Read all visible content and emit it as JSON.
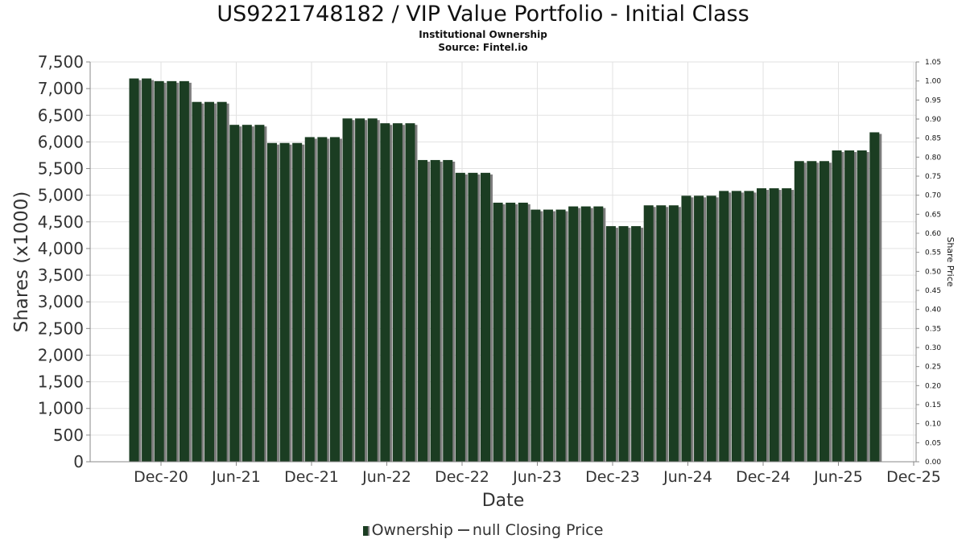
{
  "chart_data": {
    "type": "bar",
    "title": "US9221748182 / VIP Value Portfolio - Initial Class",
    "subtitle": "Institutional Ownership",
    "source": "Source: Fintel.io",
    "xlabel": "Date",
    "ylabel": "Shares (x1000)",
    "y2label": "Share Price",
    "ylim": [
      0,
      7500
    ],
    "y_ticks": [
      0,
      500,
      1000,
      1500,
      2000,
      2500,
      3000,
      3500,
      4000,
      4500,
      5000,
      5500,
      6000,
      6500,
      7000,
      7500
    ],
    "y_tick_labels": [
      "0",
      "500",
      "1,000",
      "1,500",
      "2,000",
      "2,500",
      "3,000",
      "3,500",
      "4,000",
      "4,500",
      "5,000",
      "5,500",
      "6,000",
      "6,500",
      "7,000",
      "7,500"
    ],
    "y2lim": [
      0,
      1.05
    ],
    "y2_tick_labels": [
      "0.00",
      "0.05",
      "0.10",
      "0.15",
      "0.20",
      "0.25",
      "0.30",
      "0.35",
      "0.40",
      "0.45",
      "0.50",
      "0.55",
      "0.60",
      "0.65",
      "0.70",
      "0.75",
      "0.80",
      "0.85",
      "0.90",
      "0.95",
      "1.00",
      "1.05"
    ],
    "x_tick_labels": [
      "Dec-20",
      "Jun-21",
      "Dec-21",
      "Jun-22",
      "Dec-22",
      "Jun-23",
      "Dec-23",
      "Jun-24",
      "Dec-24",
      "Jun-25",
      "Dec-25"
    ],
    "grid": true,
    "legend_position": "bottom",
    "series": [
      {
        "name": "Ownership",
        "color": "#1b3d22",
        "values": [
          7190,
          7190,
          7140,
          7140,
          7140,
          6750,
          6750,
          6750,
          6320,
          6320,
          6320,
          5980,
          5980,
          5980,
          6090,
          6090,
          6090,
          6440,
          6440,
          6440,
          6350,
          6350,
          6350,
          5660,
          5660,
          5660,
          5420,
          5420,
          5420,
          4860,
          4860,
          4860,
          4730,
          4730,
          4730,
          4790,
          4790,
          4790,
          4420,
          4420,
          4420,
          4810,
          4810,
          4810,
          4990,
          4990,
          4990,
          5080,
          5080,
          5080,
          5130,
          5130,
          5130,
          5640,
          5640,
          5640,
          5840,
          5840,
          5840,
          6180
        ]
      },
      {
        "name": "null Closing Price",
        "color": "#444444",
        "values": []
      }
    ]
  }
}
